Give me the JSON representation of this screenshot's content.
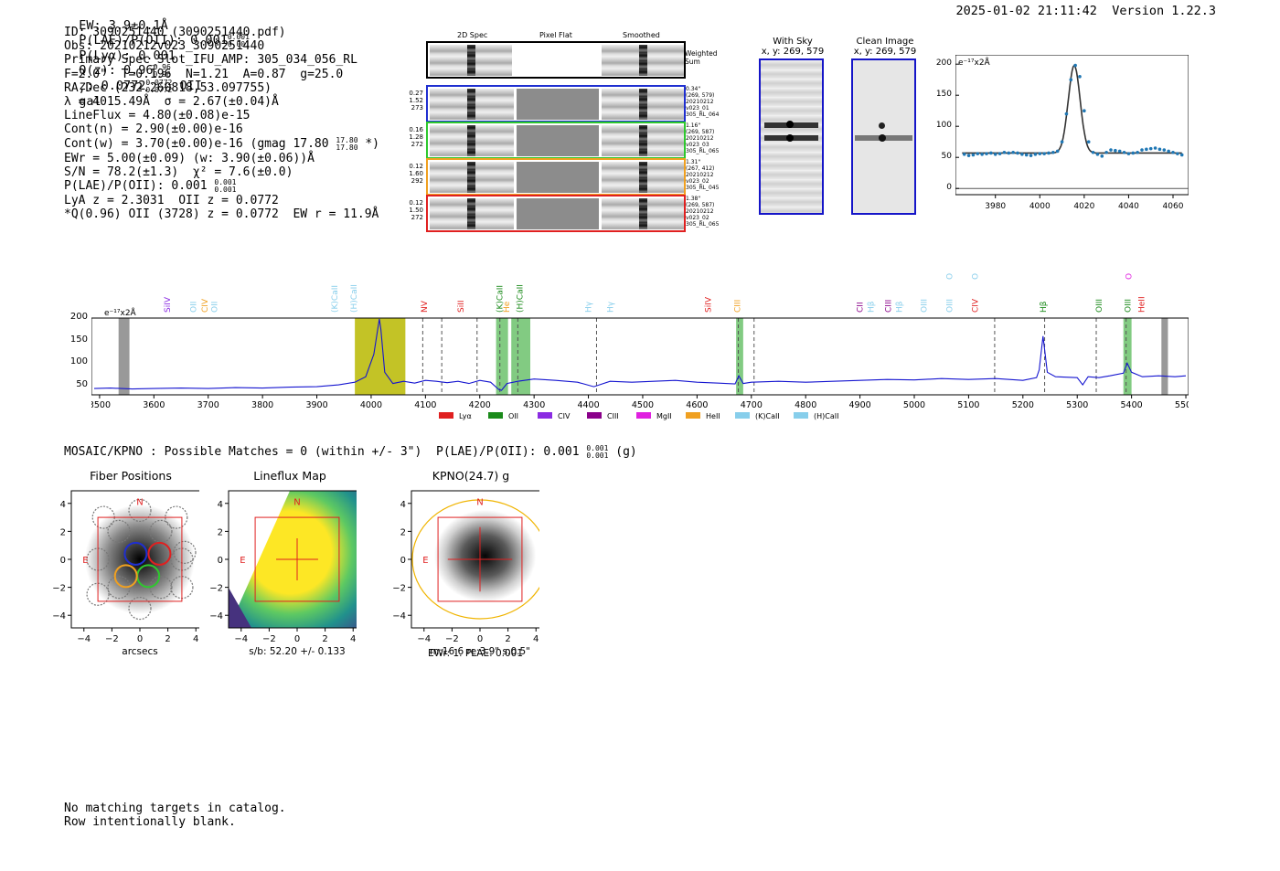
{
  "header": {
    "ew": "EW: 3.9±0.1Å",
    "plae_label": "P(LAE)/P(OII): 0.001",
    "plae_sup": "0.001",
    "plae_sub": "0.001",
    "plya": "P(Lyα): 0.001",
    "qz_label": "Q(z): 0.96",
    "qz_sup": "0.96",
    "qz_sub": "0.96",
    "z_label": "z: 0.0772",
    "z_sup": "0.0772",
    "z_sub": "0.0772",
    "line_class": "OII",
    "obj_class": "gal",
    "timestamp": "2025-01-02 21:11:42",
    "version": "Version 1.22.3"
  },
  "info": {
    "id": "ID: 3090251440 (3090251440.pdf)",
    "obs": "Obs: 20210212v023_3090251440",
    "primary": "Primary Spec_Slot_IFU_AMP: 305_034_056_RL",
    "params": "F=2.0\"  T=0.196  N=1.21  A=0.87  g=25.0",
    "radec": "RA,Dec (232.260818,53.097755)",
    "lambda": "λ = 4015.49Å  σ = 2.67(±0.04)Å",
    "lineflux": "LineFlux = 4.80(±0.08)e-15",
    "contn": "Cont(n) = 2.90(±0.00)e-16",
    "contw_a": "Cont(w) = 3.70(±0.00)e-16 (gmag 17.80",
    "contw_sup": "17.80",
    "contw_sub": "17.80",
    "contw_b": "*)",
    "ewr": "EWr = 5.00(±0.09) (w: 3.90(±0.06))Å",
    "sn": "S/N = 78.2(±1.3)  χ² = 7.6(±0.0)",
    "plae": "P(LAE)/P(OII): 0.001",
    "plae_sup": "0.001",
    "plae_sub": "0.001",
    "lya": "LyA z = 2.3031  OII z = 0.0772",
    "q": "*Q(0.96) OII (3728) z = 0.0772  EW r = 11.9Å"
  },
  "cutouts": {
    "headers": [
      "2D Spec",
      "Pixel Flat",
      "Smoothed"
    ],
    "weighted_label": "Weighted Sum",
    "rows": [
      {
        "l1": "0.27",
        "l2": "1.52",
        "l3": "273",
        "t1": "0.34\"",
        "t2": "(269, 579)",
        "t3": "20210212",
        "t4": "v023_01",
        "t5": "305_RL_064",
        "color": "#1f2fd0"
      },
      {
        "l1": "0.16",
        "l2": "1.28",
        "l3": "272",
        "t1": "1.16\"",
        "t2": "(269, 587)",
        "t3": "20210212",
        "t4": "v023_03",
        "t5": "305_RL_065",
        "color": "#2ec82e"
      },
      {
        "l1": "0.12",
        "l2": "1.60",
        "l3": "292",
        "t1": "1.31\"",
        "t2": "(267, 412)",
        "t3": "20210212",
        "t4": "v023_02",
        "t5": "305_RL_045",
        "color": "#f0a020"
      },
      {
        "l1": "0.12",
        "l2": "1.50",
        "l3": "272",
        "t1": "1.38\"",
        "t2": "(269, 587)",
        "t3": "20210212",
        "t4": "v023_02",
        "t5": "305_RL_065",
        "color": "#e02020"
      }
    ]
  },
  "sky": {
    "with_sky": "With Sky",
    "with_sky_xy": "x, y: 269, 579",
    "clean": "Clean Image",
    "clean_xy": "x, y: 269, 579"
  },
  "fit_plot": {
    "units": "e⁻¹⁷x2Å",
    "xticks": [
      "3980",
      "4000",
      "4020",
      "4040",
      "4060"
    ],
    "yticks": [
      "0",
      "50",
      "100",
      "150",
      "200"
    ],
    "chart_data": {
      "type": "scatter",
      "x": [
        3966,
        3968,
        3970,
        3972,
        3974,
        3976,
        3978,
        3980,
        3982,
        3984,
        3986,
        3988,
        3990,
        3992,
        3994,
        3996,
        3998,
        4000,
        4002,
        4004,
        4006,
        4008,
        4010,
        4012,
        4014,
        4016,
        4018,
        4020,
        4022,
        4024,
        4026,
        4028,
        4030,
        4032,
        4034,
        4036,
        4038,
        4040,
        4042,
        4044,
        4046,
        4048,
        4050,
        4052,
        4054,
        4056,
        4058,
        4060,
        4062,
        4064
      ],
      "y": [
        55,
        53,
        54,
        56,
        55,
        56,
        57,
        55,
        56,
        58,
        57,
        58,
        57,
        55,
        54,
        53,
        55,
        56,
        56,
        57,
        58,
        60,
        75,
        120,
        175,
        198,
        180,
        125,
        75,
        58,
        55,
        52,
        58,
        62,
        61,
        60,
        58,
        56,
        57,
        58,
        62,
        63,
        64,
        65,
        63,
        62,
        60,
        58,
        56,
        54
      ],
      "xlim": [
        3962,
        4067
      ],
      "ylim": [
        -10,
        215
      ]
    }
  },
  "spectrum": {
    "units": "e⁻¹⁷x2Å",
    "yticks": [
      "50",
      "100",
      "150",
      "200"
    ],
    "xticks": [
      "3500",
      "3600",
      "3700",
      "3800",
      "3900",
      "4000",
      "4100",
      "4200",
      "4300",
      "4400",
      "4500",
      "4600",
      "4700",
      "4800",
      "4900",
      "5000",
      "5100",
      "5200",
      "5300",
      "5400",
      "5500"
    ],
    "lines": [
      {
        "name": "SiIV",
        "x": 3625,
        "color": "#8a2be2",
        "row": 0
      },
      {
        "name": "OII",
        "x": 3673,
        "color": "#87ceeb",
        "row": 0
      },
      {
        "name": "CIV",
        "x": 3694,
        "color": "#f0a020",
        "row": 0
      },
      {
        "name": "OII",
        "x": 3711,
        "color": "#87ceeb",
        "row": 0
      },
      {
        "name": "(K)CaII",
        "x": 3933,
        "color": "#87ceeb",
        "row": 0
      },
      {
        "name": "(H)CaII",
        "x": 3968,
        "color": "#87ceeb",
        "row": 0
      },
      {
        "name": "NV",
        "x": 4098,
        "color": "#e02020",
        "row": 1
      },
      {
        "name": "SiII",
        "x": 4165,
        "color": "#e02020",
        "row": 1
      },
      {
        "name": "(K)CaII",
        "x": 4237,
        "color": "#1a8a1a",
        "row": 0
      },
      {
        "name": "He",
        "x": 4249,
        "color": "#f0a020",
        "row": 0
      },
      {
        "name": "(H)CaII",
        "x": 4274,
        "color": "#1a8a1a",
        "row": 0
      },
      {
        "name": "Hγ",
        "x": 4400,
        "color": "#87ceeb",
        "row": 1
      },
      {
        "name": "Hγ",
        "x": 4440,
        "color": "#87ceeb",
        "row": 1
      },
      {
        "name": "SiIV",
        "x": 4620,
        "color": "#e02020",
        "row": 1
      },
      {
        "name": "CIII",
        "x": 4674,
        "color": "#f0a020",
        "row": 1
      },
      {
        "name": "CII",
        "x": 4900,
        "color": "#8a008a",
        "row": 1
      },
      {
        "name": "Hβ",
        "x": 4920,
        "color": "#87ceeb",
        "row": 1
      },
      {
        "name": "CIII",
        "x": 4952,
        "color": "#8a008a",
        "row": 1
      },
      {
        "name": "Hβ",
        "x": 4972,
        "color": "#87ceeb",
        "row": 1
      },
      {
        "name": "OIII",
        "x": 5018,
        "color": "#87ceeb",
        "row": 1
      },
      {
        "name": "OIII",
        "x": 5065,
        "color": "#87ceeb",
        "row": 1
      },
      {
        "name": "OII",
        "x": 5065,
        "color": "#87ceeb",
        "row": 2
      },
      {
        "name": "OIII",
        "x": 5112,
        "color": "#87ceeb",
        "row": 2
      },
      {
        "name": "CIV",
        "x": 5112,
        "color": "#e02020",
        "row": 1
      },
      {
        "name": "Hβ",
        "x": 5237,
        "color": "#1a8a1a",
        "row": 1
      },
      {
        "name": "OIII",
        "x": 5340,
        "color": "#1a8a1a",
        "row": 1
      },
      {
        "name": "OII",
        "x": 5395,
        "color": "#e020e0",
        "row": 2
      },
      {
        "name": "OIII",
        "x": 5393,
        "color": "#1a8a1a",
        "row": 1
      },
      {
        "name": "HeII",
        "x": 5418,
        "color": "#e02020",
        "row": 1
      }
    ],
    "legend": [
      {
        "name": "Lyα",
        "color": "#e02020"
      },
      {
        "name": "OII",
        "color": "#1a8a1a"
      },
      {
        "name": "CIV",
        "color": "#8a2be2"
      },
      {
        "name": "CIII",
        "color": "#8a008a"
      },
      {
        "name": "MgII",
        "color": "#e020e0"
      },
      {
        "name": "HeII",
        "color": "#f0a020"
      },
      {
        "name": "(K)CaII",
        "color": "#87ceeb"
      },
      {
        "name": "(H)CaII",
        "color": "#87ceeb"
      }
    ],
    "chart_data": {
      "type": "line",
      "xlim": [
        3485,
        5505
      ],
      "ylim": [
        30,
        200
      ],
      "x": [
        3490,
        3520,
        3560,
        3600,
        3650,
        3700,
        3750,
        3800,
        3850,
        3900,
        3940,
        3970,
        3990,
        4005,
        4012,
        4015,
        4018,
        4025,
        4040,
        4060,
        4080,
        4100,
        4120,
        4140,
        4160,
        4180,
        4200,
        4220,
        4235,
        4240,
        4250,
        4270,
        4300,
        4340,
        4380,
        4410,
        4420,
        4440,
        4480,
        4520,
        4560,
        4600,
        4640,
        4670,
        4677,
        4685,
        4700,
        4750,
        4800,
        4850,
        4900,
        4950,
        5000,
        5050,
        5100,
        5150,
        5200,
        5225,
        5230,
        5237,
        5245,
        5260,
        5300,
        5310,
        5320,
        5340,
        5360,
        5385,
        5392,
        5400,
        5420,
        5450,
        5480,
        5500
      ],
      "y": [
        44,
        45,
        43,
        44,
        45,
        44,
        46,
        45,
        47,
        48,
        52,
        58,
        70,
        120,
        175,
        198,
        175,
        80,
        55,
        60,
        56,
        62,
        60,
        57,
        60,
        55,
        62,
        58,
        42,
        40,
        55,
        60,
        65,
        62,
        58,
        48,
        52,
        60,
        58,
        60,
        62,
        58,
        56,
        54,
        72,
        55,
        58,
        60,
        58,
        60,
        62,
        64,
        63,
        66,
        64,
        66,
        62,
        68,
        85,
        160,
        80,
        70,
        68,
        52,
        70,
        68,
        72,
        78,
        100,
        80,
        70,
        72,
        70,
        72
      ]
    }
  },
  "mosaic_line": {
    "text": "MOSAIC/KPNO : Possible Matches = 0 (within +/- 3\")  P(LAE)/P(OII): 0.001",
    "sup": "0.001",
    "sub": "0.001",
    "tail": "(g)"
  },
  "thumbs": [
    {
      "title": "Fiber Positions",
      "xlabel": "arcsecs",
      "caption": ""
    },
    {
      "title": "Lineflux Map",
      "xlabel": "",
      "caption": "s/b: 52.20 +/- 0.133"
    },
    {
      "title": "KPNO(24.7) g",
      "xlabel": "",
      "caption": "m:16.6  re:3.9\"  s:0.5\"",
      "caption2": "EWr: 1. PLAE: 0.001"
    }
  ],
  "thumb_ticks": [
    "−4",
    "−2",
    "0",
    "2",
    "4"
  ],
  "compass": {
    "n": "N",
    "e": "E"
  },
  "footer": {
    "line1": "No matching targets in catalog.",
    "line2": "Row intentionally blank."
  }
}
